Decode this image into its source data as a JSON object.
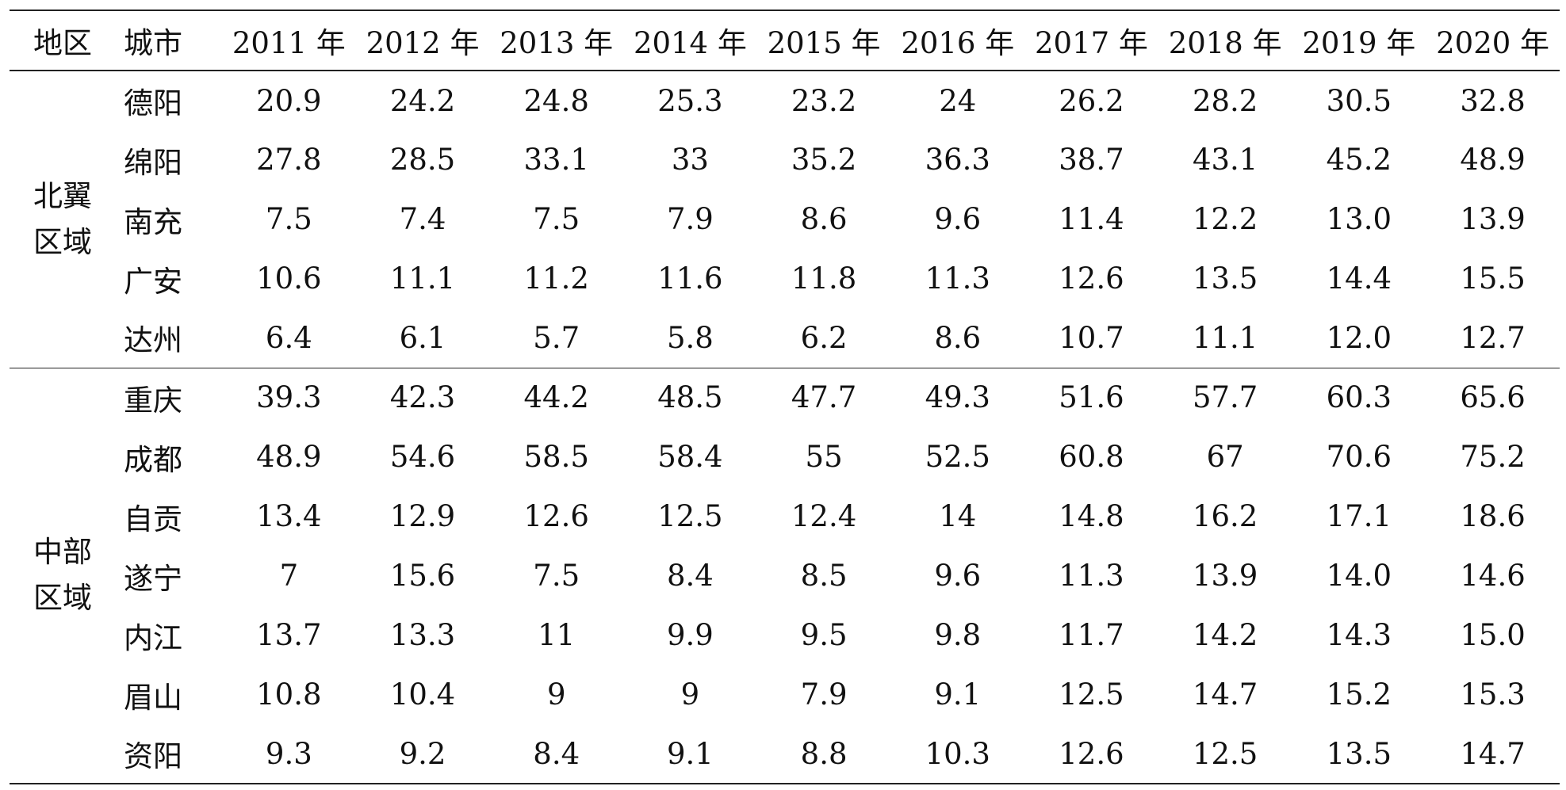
{
  "table": {
    "headers": {
      "region": "地区",
      "city": "城市",
      "years": [
        "2011 年",
        "2012 年",
        "2013 年",
        "2014 年",
        "2015 年",
        "2016 年",
        "2017 年",
        "2018 年",
        "2019 年",
        "2020 年"
      ]
    },
    "groups": [
      {
        "region_line1": "北翼",
        "region_line2": "区域",
        "rows": [
          {
            "city": "德阳",
            "values": [
              "20.9",
              "24.2",
              "24.8",
              "25.3",
              "23.2",
              "24",
              "26.2",
              "28.2",
              "30.5",
              "32.8"
            ]
          },
          {
            "city": "绵阳",
            "values": [
              "27.8",
              "28.5",
              "33.1",
              "33",
              "35.2",
              "36.3",
              "38.7",
              "43.1",
              "45.2",
              "48.9"
            ]
          },
          {
            "city": "南充",
            "values": [
              "7.5",
              "7.4",
              "7.5",
              "7.9",
              "8.6",
              "9.6",
              "11.4",
              "12.2",
              "13.0",
              "13.9"
            ]
          },
          {
            "city": "广安",
            "values": [
              "10.6",
              "11.1",
              "11.2",
              "11.6",
              "11.8",
              "11.3",
              "12.6",
              "13.5",
              "14.4",
              "15.5"
            ]
          },
          {
            "city": "达州",
            "values": [
              "6.4",
              "6.1",
              "5.7",
              "5.8",
              "6.2",
              "8.6",
              "10.7",
              "11.1",
              "12.0",
              "12.7"
            ]
          }
        ]
      },
      {
        "region_line1": "中部",
        "region_line2": "区域",
        "rows": [
          {
            "city": "重庆",
            "values": [
              "39.3",
              "42.3",
              "44.2",
              "48.5",
              "47.7",
              "49.3",
              "51.6",
              "57.7",
              "60.3",
              "65.6"
            ]
          },
          {
            "city": "成都",
            "values": [
              "48.9",
              "54.6",
              "58.5",
              "58.4",
              "55",
              "52.5",
              "60.8",
              "67",
              "70.6",
              "75.2"
            ]
          },
          {
            "city": "自贡",
            "values": [
              "13.4",
              "12.9",
              "12.6",
              "12.5",
              "12.4",
              "14",
              "14.8",
              "16.2",
              "17.1",
              "18.6"
            ]
          },
          {
            "city": "遂宁",
            "values": [
              "7",
              "15.6",
              "7.5",
              "8.4",
              "8.5",
              "9.6",
              "11.3",
              "13.9",
              "14.0",
              "14.6"
            ]
          },
          {
            "city": "内江",
            "values": [
              "13.7",
              "13.3",
              "11",
              "9.9",
              "9.5",
              "9.8",
              "11.7",
              "14.2",
              "14.3",
              "15.0"
            ]
          },
          {
            "city": "眉山",
            "values": [
              "10.8",
              "10.4",
              "9",
              "9",
              "7.9",
              "9.1",
              "12.5",
              "14.7",
              "15.2",
              "15.3"
            ]
          },
          {
            "city": "资阳",
            "values": [
              "9.3",
              "9.2",
              "8.4",
              "9.1",
              "8.8",
              "10.3",
              "12.6",
              "12.5",
              "13.5",
              "14.7"
            ]
          }
        ]
      }
    ]
  }
}
